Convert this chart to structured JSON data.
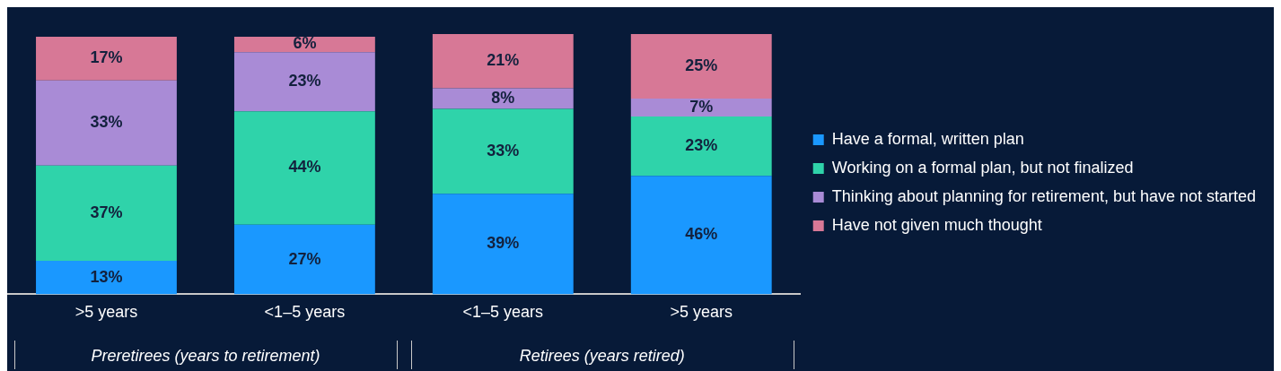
{
  "chart_data": {
    "type": "bar",
    "stacked": true,
    "legend": "right",
    "grid": false,
    "tick_labels": "x",
    "categories": [
      ">5 years",
      "<1–5 years",
      "<1–5 years",
      ">5 years"
    ],
    "series": [
      {
        "name": "Have a formal, written plan",
        "color": "#1a98ff",
        "values": [
          13,
          27,
          39,
          46
        ],
        "value_labels": [
          "13%",
          "27%",
          "39%",
          "46%"
        ]
      },
      {
        "name": "Working on a formal plan, but not finalized",
        "color": "#2fd3aa",
        "values": [
          37,
          44,
          33,
          23
        ],
        "value_labels": [
          "37%",
          "44%",
          "33%",
          "23%"
        ]
      },
      {
        "name": "Thinking about planning for retirement, but have not started",
        "color": "#a98bd6",
        "values": [
          33,
          23,
          8,
          7
        ],
        "value_labels": [
          "33%",
          "23%",
          "8%",
          "7%"
        ]
      },
      {
        "name": "Have not given much thought",
        "color": "#d77896",
        "values": [
          17,
          6,
          21,
          25
        ],
        "value_labels": [
          "17%",
          "6%",
          "21%",
          "25%"
        ]
      }
    ],
    "annotations": [
      "Preretirees (years to retirement)",
      "Retirees (years retired)"
    ]
  }
}
